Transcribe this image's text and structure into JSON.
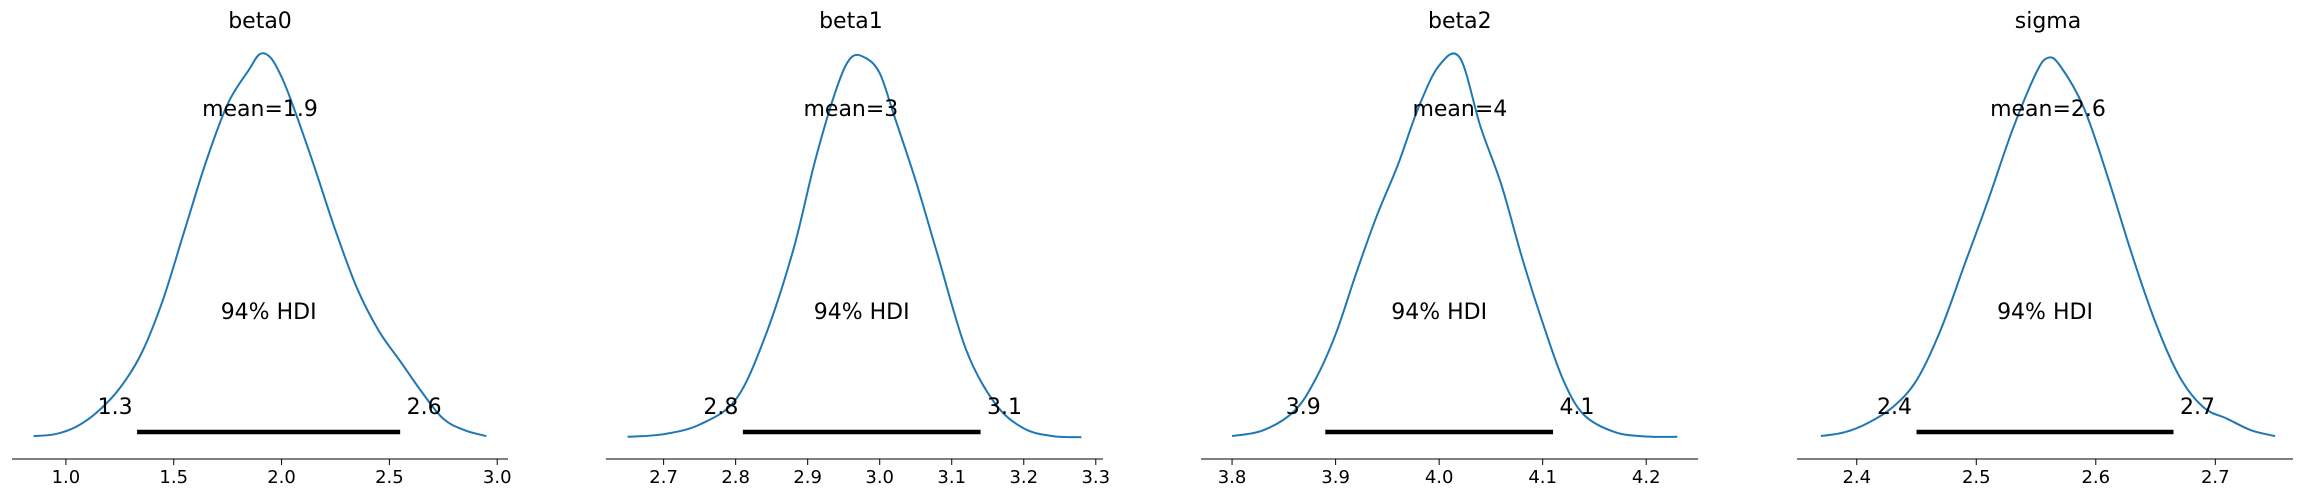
{
  "chart_data": [
    {
      "type": "line",
      "title": "beta0",
      "mean_label": "mean=1.9",
      "hdi_label": "94% HDI",
      "hdi": [
        1.33,
        2.55
      ],
      "hdi_low_label": "1.3",
      "hdi_high_label": "2.6",
      "xlim": [
        0.75,
        3.05
      ],
      "xticks": [
        1.0,
        1.5,
        2.0,
        2.5,
        3.0
      ],
      "xtick_labels": [
        "1.0",
        "1.5",
        "2.0",
        "2.5",
        "3.0"
      ],
      "x": [
        0.85,
        0.95,
        1.05,
        1.15,
        1.25,
        1.35,
        1.45,
        1.55,
        1.65,
        1.75,
        1.85,
        1.9,
        1.95,
        2.0,
        2.05,
        2.15,
        2.25,
        2.35,
        2.45,
        2.55,
        2.65,
        2.75,
        2.85,
        2.95
      ],
      "density": [
        0.005,
        0.01,
        0.03,
        0.07,
        0.13,
        0.22,
        0.36,
        0.54,
        0.72,
        0.87,
        0.96,
        1.0,
        0.99,
        0.94,
        0.87,
        0.71,
        0.54,
        0.39,
        0.28,
        0.2,
        0.12,
        0.05,
        0.02,
        0.005
      ]
    },
    {
      "type": "line",
      "title": "beta1",
      "mean_label": "mean=3",
      "hdi_label": "94% HDI",
      "hdi": [
        2.81,
        3.14
      ],
      "hdi_low_label": "2.8",
      "hdi_high_label": "3.1",
      "xlim": [
        2.62,
        3.31
      ],
      "xticks": [
        2.7,
        2.8,
        2.9,
        3.0,
        3.1,
        3.2,
        3.3
      ],
      "xtick_labels": [
        "2.7",
        "2.8",
        "2.9",
        "3.0",
        "3.1",
        "3.2",
        "3.3"
      ],
      "x": [
        2.65,
        2.7,
        2.75,
        2.8,
        2.84,
        2.88,
        2.91,
        2.94,
        2.96,
        2.98,
        3.0,
        3.02,
        3.05,
        3.08,
        3.12,
        3.16,
        3.2,
        3.24,
        3.28
      ],
      "density": [
        0.003,
        0.01,
        0.035,
        0.1,
        0.26,
        0.49,
        0.72,
        0.91,
        0.99,
        0.99,
        0.95,
        0.84,
        0.67,
        0.48,
        0.23,
        0.09,
        0.025,
        0.005,
        0.002
      ]
    },
    {
      "type": "line",
      "title": "beta2",
      "mean_label": "mean=4",
      "hdi_label": "94% HDI",
      "hdi": [
        3.89,
        4.11
      ],
      "hdi_low_label": "3.9",
      "hdi_high_label": "4.1",
      "xlim": [
        3.77,
        4.25
      ],
      "xticks": [
        3.8,
        3.9,
        4.0,
        4.1,
        4.2
      ],
      "xtick_labels": [
        "3.8",
        "3.9",
        "4.0",
        "4.1",
        "4.2"
      ],
      "x": [
        3.8,
        3.83,
        3.86,
        3.88,
        3.9,
        3.92,
        3.94,
        3.96,
        3.98,
        4.0,
        4.02,
        4.04,
        4.06,
        4.08,
        4.1,
        4.12,
        4.14,
        4.17,
        4.2,
        4.23
      ],
      "density": [
        0.005,
        0.02,
        0.07,
        0.15,
        0.27,
        0.43,
        0.58,
        0.71,
        0.86,
        0.97,
        0.99,
        0.81,
        0.66,
        0.47,
        0.3,
        0.15,
        0.06,
        0.015,
        0.004,
        0.003
      ]
    },
    {
      "type": "line",
      "title": "sigma",
      "mean_label": "mean=2.6",
      "hdi_label": "94% HDI",
      "hdi": [
        2.45,
        2.665
      ],
      "hdi_low_label": "2.4",
      "hdi_high_label": "2.7",
      "xlim": [
        2.35,
        2.765
      ],
      "xticks": [
        2.4,
        2.5,
        2.6,
        2.7
      ],
      "xtick_labels": [
        "2.4",
        "2.5",
        "2.6",
        "2.7"
      ],
      "x": [
        2.37,
        2.39,
        2.41,
        2.43,
        2.45,
        2.47,
        2.49,
        2.51,
        2.53,
        2.55,
        2.56,
        2.57,
        2.59,
        2.61,
        2.63,
        2.65,
        2.67,
        2.69,
        2.71,
        2.73,
        2.75
      ],
      "density": [
        0.005,
        0.015,
        0.04,
        0.08,
        0.15,
        0.28,
        0.45,
        0.62,
        0.8,
        0.95,
        0.99,
        0.97,
        0.86,
        0.68,
        0.48,
        0.3,
        0.16,
        0.08,
        0.05,
        0.02,
        0.005
      ]
    }
  ]
}
